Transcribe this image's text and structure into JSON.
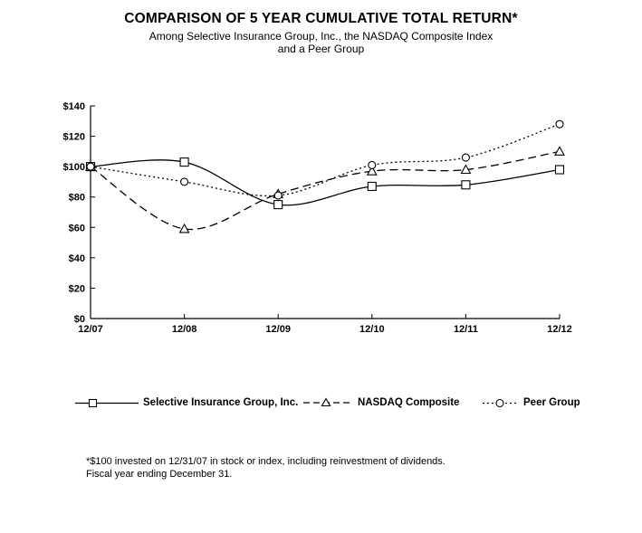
{
  "page": {
    "title": "COMPARISON OF 5 YEAR CUMULATIVE TOTAL RETURN*",
    "subtitle_line1": "Among Selective Insurance Group, Inc., the NASDAQ Composite Index",
    "subtitle_line2": "and a Peer Group",
    "footnote_line1": "*$100 invested on 12/31/07 in stock or index, including reinvestment of dividends.",
    "footnote_line2": "Fiscal year ending December 31.",
    "background_color": "#ffffff",
    "text_color": "#000000"
  },
  "chart_data": {
    "type": "line",
    "title": "COMPARISON OF 5 YEAR CUMULATIVE TOTAL RETURN*",
    "subtitle": "Among Selective Insurance Group, Inc., the NASDAQ Composite Index and a Peer Group",
    "categories": [
      "12/07",
      "12/08",
      "12/09",
      "12/10",
      "12/11",
      "12/12"
    ],
    "series": [
      {
        "name": "Selective Insurance Group, Inc.",
        "marker": "square",
        "line_style": "solid",
        "values": [
          100,
          103,
          75,
          87,
          88,
          98
        ]
      },
      {
        "name": "NASDAQ Composite",
        "marker": "triangle",
        "line_style": "dashed",
        "values": [
          100,
          59,
          82,
          97,
          98,
          110
        ]
      },
      {
        "name": "Peer Group",
        "marker": "circle",
        "line_style": "dotted",
        "values": [
          100,
          90,
          81,
          101,
          106,
          128
        ]
      }
    ],
    "y_ticks": [
      0,
      20,
      40,
      60,
      80,
      100,
      120,
      140
    ],
    "y_tick_prefix": "$",
    "ylim": [
      0,
      140
    ],
    "xlabel": "",
    "ylabel": "",
    "grid": false,
    "legend_position": "bottom",
    "line_color": "#000000",
    "marker_fill": "#ffffff"
  }
}
